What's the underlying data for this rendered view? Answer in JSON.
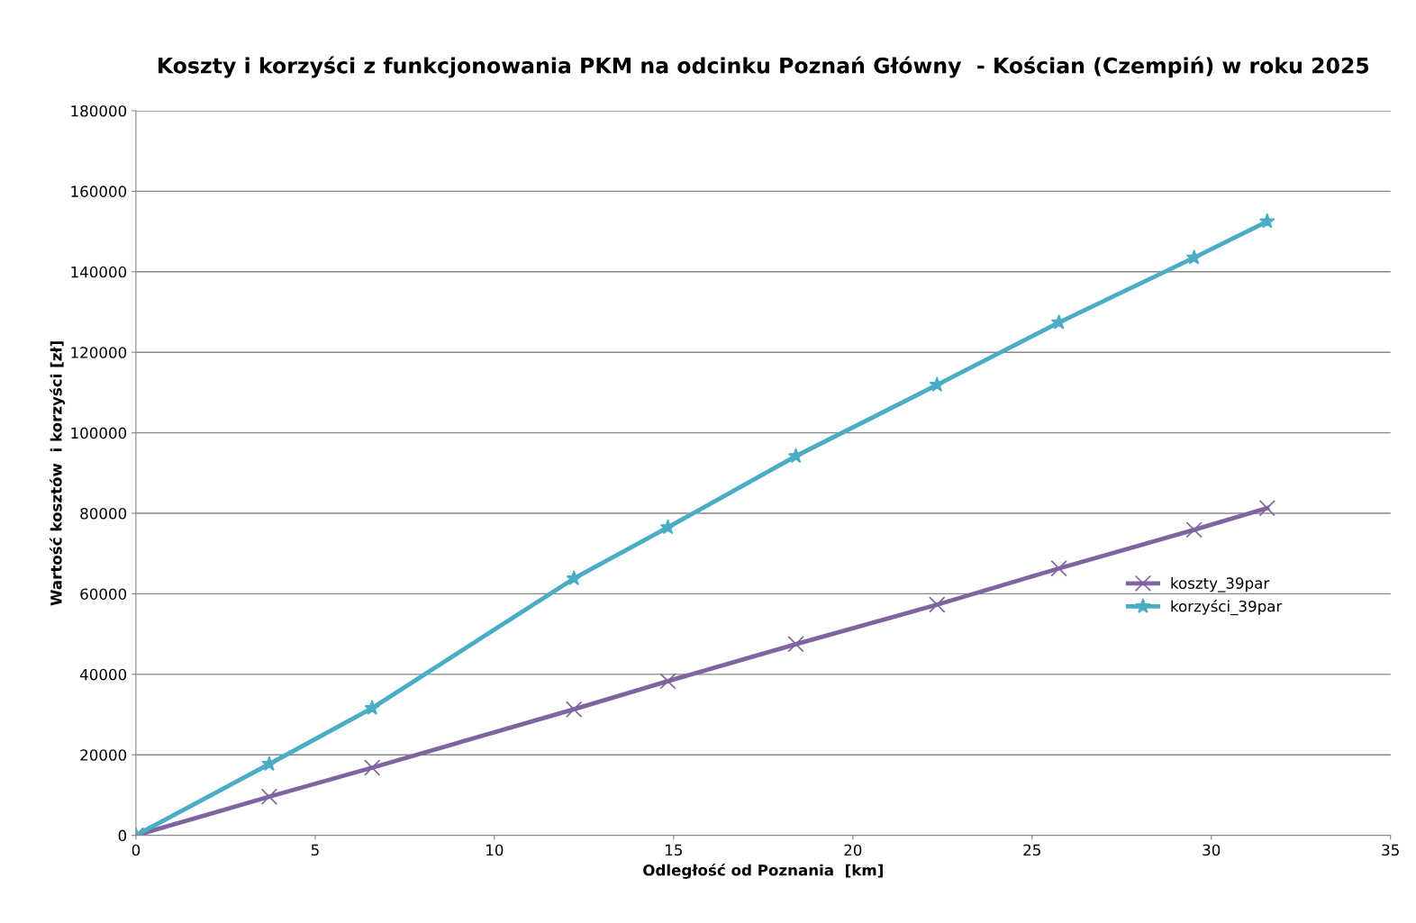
{
  "chart_data": {
    "type": "line",
    "title": "Koszty i korzyści z funkcjonowania PKM na odcinku Poznań Główny  - Kościan (Czempiń) w roku 2025",
    "xlabel": "Odległość od Poznania  [km]",
    "ylabel": "Wartość kosztów  i korzyści [zł]",
    "x": [
      0,
      3.72,
      6.59,
      12.22,
      14.84,
      18.41,
      22.35,
      25.75,
      29.52,
      31.56
    ],
    "series": [
      {
        "name": "koszty_39par",
        "color": "#8064a2",
        "marker": "cross",
        "values": [
          0,
          9600,
          16800,
          31300,
          38300,
          47500,
          57300,
          66300,
          75900,
          81300
        ]
      },
      {
        "name": "korzyści_39par",
        "color": "#4bacc6",
        "marker": "star",
        "values": [
          0,
          17700,
          31600,
          63800,
          76500,
          94200,
          111900,
          127400,
          143500,
          152500
        ]
      }
    ],
    "xlim": [
      0,
      35
    ],
    "xticks": [
      0,
      5,
      10,
      15,
      20,
      25,
      30,
      35
    ],
    "ylim": [
      0,
      180000
    ],
    "yticks": [
      0,
      20000,
      40000,
      60000,
      80000,
      100000,
      120000,
      140000,
      160000,
      180000
    ],
    "grid": "y",
    "legend": "right",
    "line_style": "solid"
  }
}
